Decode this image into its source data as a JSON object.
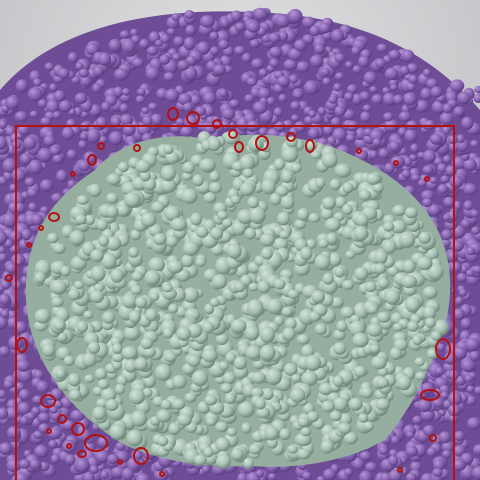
{
  "image": {
    "description_kind": "photo",
    "colors": {
      "background_plate": "#d8d8da",
      "purple_granules": "#8a63b3",
      "purple_shadow": "#5d3f82",
      "green_granules": "#a9c2b5",
      "green_shadow": "#6f8a7d",
      "annotation_red": "#b31212"
    }
  },
  "annotations": {
    "bounding_box_count": 1,
    "outlined_granule_count": 34,
    "bounding_box_label": "",
    "outline_color_name": "red"
  }
}
